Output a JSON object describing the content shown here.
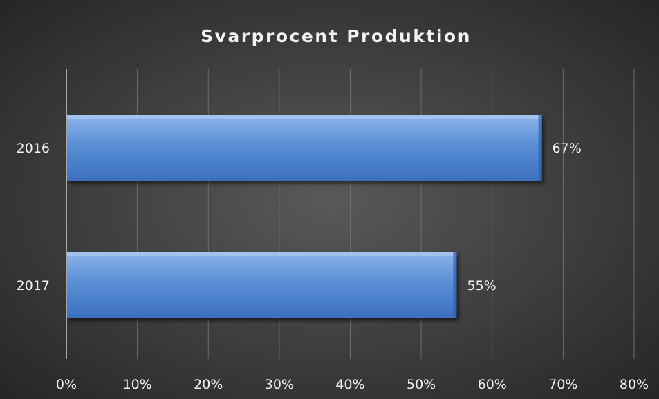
{
  "chart_data": {
    "type": "bar",
    "orientation": "horizontal",
    "title": "Svarprocent Produktion",
    "categories": [
      "2016",
      "2017"
    ],
    "values": [
      67,
      55
    ],
    "value_labels": [
      "67%",
      "55%"
    ],
    "xlabel": "",
    "ylabel": "",
    "xlim": [
      0,
      80
    ],
    "x_ticks": [
      0,
      10,
      20,
      30,
      40,
      50,
      60,
      70,
      80
    ],
    "x_tick_labels": [
      "0%",
      "10%",
      "20%",
      "30%",
      "40%",
      "50%",
      "60%",
      "70%",
      "80%"
    ],
    "grid": true,
    "legend": "none"
  },
  "colors": {
    "background_center": "#595959",
    "background_edge": "#262626",
    "bar_top": "#8cb4ea",
    "bar_mid": "#5a8fd6",
    "bar_bottom": "#3b6fbf",
    "text": "#f2f2f2",
    "gridline": "#6e6e6e",
    "axis": "#a6a6a6"
  }
}
